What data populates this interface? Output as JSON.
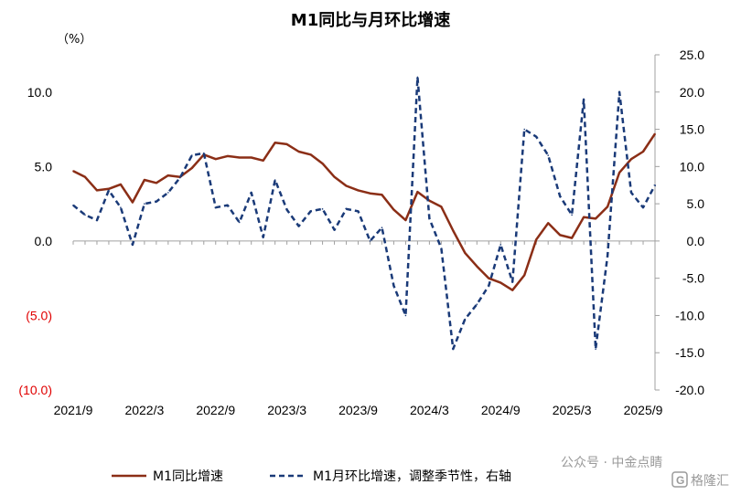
{
  "chart_data": {
    "type": "line",
    "title": "M1同比与月环比增速",
    "left_axis_unit": "（%）",
    "left_axis": {
      "ylim": [
        -10,
        12.5
      ],
      "ticks": [
        {
          "value": 10,
          "label": "10.0"
        },
        {
          "value": 5,
          "label": "5.0"
        },
        {
          "value": 0,
          "label": "0.0"
        },
        {
          "value": -5,
          "label": "(5.0)"
        },
        {
          "value": -10,
          "label": "(10.0)"
        }
      ]
    },
    "right_axis": {
      "ylim": [
        -20,
        25
      ],
      "ticks": [
        {
          "value": 25,
          "label": "25.0"
        },
        {
          "value": 20,
          "label": "20.0"
        },
        {
          "value": 15,
          "label": "15.0"
        },
        {
          "value": 10,
          "label": "10.0"
        },
        {
          "value": 5,
          "label": "5.0"
        },
        {
          "value": 0,
          "label": "0.0"
        },
        {
          "value": -5,
          "label": "-5.0"
        },
        {
          "value": -10,
          "label": "-10.0"
        },
        {
          "value": -15,
          "label": "-15.0"
        },
        {
          "value": -20,
          "label": "-20.0"
        }
      ]
    },
    "x_labels": [
      {
        "index": 0,
        "label": "2021/9"
      },
      {
        "index": 6,
        "label": "2022/3"
      },
      {
        "index": 12,
        "label": "2022/9"
      },
      {
        "index": 18,
        "label": "2023/3"
      },
      {
        "index": 24,
        "label": "2023/9"
      },
      {
        "index": 30,
        "label": "2024/3"
      },
      {
        "index": 36,
        "label": "2024/9"
      },
      {
        "index": 42,
        "label": "2025/3"
      },
      {
        "index": 48,
        "label": "2025/9"
      }
    ],
    "series": [
      {
        "name": "M1同比增速",
        "axis": "left",
        "color": "#8B2E16",
        "style": "solid",
        "values": [
          4.7,
          4.3,
          3.4,
          3.5,
          3.8,
          2.6,
          4.1,
          3.9,
          4.4,
          4.3,
          4.9,
          5.8,
          5.5,
          5.7,
          5.6,
          5.6,
          5.4,
          6.6,
          6.5,
          6.0,
          5.8,
          5.2,
          4.3,
          3.7,
          3.4,
          3.2,
          3.1,
          2.1,
          1.4,
          3.3,
          2.7,
          2.3,
          0.7,
          -0.8,
          -1.7,
          -2.5,
          -2.8,
          -3.3,
          -2.3,
          0.1,
          1.2,
          0.4,
          0.2,
          1.6,
          1.5,
          2.3,
          4.6,
          5.5,
          6.0,
          7.2
        ]
      },
      {
        "name": "M1月环比增速，调整季节性，右轴",
        "axis": "right",
        "color": "#1A3A78",
        "style": "dashed",
        "values": [
          4.8,
          3.5,
          2.8,
          6.8,
          4.5,
          -0.5,
          5.0,
          5.3,
          6.5,
          8.5,
          11.5,
          11.8,
          4.5,
          4.8,
          2.5,
          6.5,
          0.5,
          8.2,
          4.2,
          2.0,
          4.0,
          4.3,
          1.5,
          4.3,
          4.0,
          0.0,
          1.8,
          -6.0,
          -10.0,
          22.0,
          3.0,
          -1.0,
          -14.5,
          -10.5,
          -8.5,
          -6.0,
          -0.5,
          -5.5,
          15.0,
          14.0,
          11.5,
          6.0,
          3.5,
          19.0,
          -14.5,
          -2.0,
          20.0,
          6.5,
          4.5,
          7.5
        ]
      }
    ],
    "legend": {
      "placement": "bottom",
      "entries": [
        "M1同比增速",
        "M1月环比增速，调整季节性，右轴"
      ]
    },
    "watermark": "公众号 · 中金点睛",
    "logo_text": "格隆汇"
  }
}
